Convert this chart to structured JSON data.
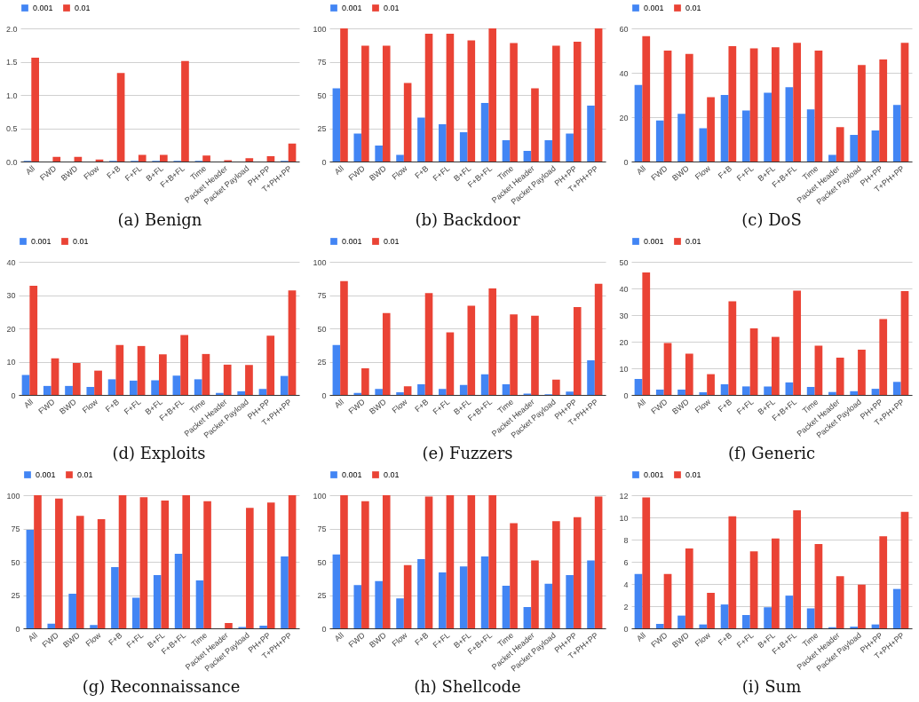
{
  "chart_data": [
    {
      "type": "bar",
      "title": "(a) Benign",
      "categories": [
        "All",
        "FWD",
        "BWD",
        "Flow",
        "F+B",
        "F+FL",
        "B+FL",
        "F+B+FL",
        "Time",
        "Packet Header",
        "Packet Payload",
        "PH+PP",
        "T+PH+PP"
      ],
      "series": [
        {
          "name": "0.001",
          "color": "#4285f4",
          "values": [
            0.01,
            0,
            0,
            0,
            0.01,
            0.01,
            0.01,
            0.01,
            0.01,
            0,
            0,
            0,
            0.01
          ]
        },
        {
          "name": "0.01",
          "color": "#ea4335",
          "values": [
            1.56,
            0.07,
            0.07,
            0.03,
            1.33,
            0.1,
            0.1,
            1.51,
            0.09,
            0.02,
            0.05,
            0.08,
            0.27
          ]
        }
      ],
      "ylim": [
        0,
        2
      ],
      "yticks": [
        {
          "value": 0,
          "label": "0.0"
        },
        {
          "value": 0.5,
          "label": "0.5"
        },
        {
          "value": 1,
          "label": "1.0"
        },
        {
          "value": 1.5,
          "label": "1.5"
        },
        {
          "value": 2,
          "label": "2.0"
        }
      ],
      "grid": "y",
      "legend": "top"
    },
    {
      "type": "bar",
      "title": "(b) Backdoor",
      "categories": [
        "All",
        "FWD",
        "BWD",
        "Flow",
        "F+B",
        "F+FL",
        "B+FL",
        "F+B+FL",
        "Time",
        "Packet Header",
        "Packet Payload",
        "PH+PP",
        "T+PH+PP"
      ],
      "series": [
        {
          "name": "0.001",
          "color": "#4285f4",
          "values": [
            55,
            21,
            12,
            5,
            33,
            28,
            22,
            44,
            16,
            8,
            16,
            21,
            42
          ]
        },
        {
          "name": "0.01",
          "color": "#ea4335",
          "values": [
            100,
            87,
            87,
            59,
            96,
            96,
            91,
            100,
            89,
            55,
            87,
            90,
            100
          ]
        }
      ],
      "ylim": [
        0,
        100
      ],
      "yticks": [
        0,
        25,
        50,
        75,
        100
      ],
      "grid": "y",
      "legend": "top"
    },
    {
      "type": "bar",
      "title": "(c) DoS",
      "categories": [
        "All",
        "FWD",
        "BWD",
        "Flow",
        "F+B",
        "F+FL",
        "B+FL",
        "F+B+FL",
        "Time",
        "Packet Header",
        "Packet Payload",
        "PH+PP",
        "T+PH+PP"
      ],
      "series": [
        {
          "name": "0.001",
          "color": "#4285f4",
          "values": [
            34.5,
            18.5,
            21.5,
            15,
            30,
            23,
            31,
            33.5,
            23.5,
            3,
            12,
            14,
            25.5
          ]
        },
        {
          "name": "0.01",
          "color": "#ea4335",
          "values": [
            56.5,
            50,
            48.5,
            29,
            52,
            51,
            51.5,
            53.5,
            50,
            15.5,
            43.5,
            46,
            53.5
          ]
        }
      ],
      "ylim": [
        0,
        60
      ],
      "yticks": [
        0,
        20,
        40,
        60
      ],
      "grid": "y",
      "legend": "top"
    },
    {
      "type": "bar",
      "title": "(d) Exploits",
      "categories": [
        "All",
        "FWD",
        "BWD",
        "Flow",
        "F+B",
        "F+FL",
        "B+FL",
        "F+B+FL",
        "Time",
        "Packet Header",
        "Packet Payload",
        "PH+PP",
        "T+PH+PP"
      ],
      "series": [
        {
          "name": "0.001",
          "color": "#4285f4",
          "values": [
            6,
            2.7,
            2.7,
            2.4,
            4.7,
            4.3,
            4.4,
            5.8,
            4.7,
            0.6,
            1.1,
            1.8,
            5.7
          ]
        },
        {
          "name": "0.01",
          "color": "#ea4335",
          "values": [
            32.8,
            11,
            9.6,
            7.3,
            15,
            14.7,
            12.2,
            18,
            12.3,
            9.1,
            9,
            17.8,
            31.4
          ]
        }
      ],
      "ylim": [
        0,
        40
      ],
      "yticks": [
        0,
        10,
        20,
        30,
        40
      ],
      "grid": "y",
      "legend": "top"
    },
    {
      "type": "bar",
      "title": "(e) Fuzzers",
      "categories": [
        "All",
        "FWD",
        "BWD",
        "Flow",
        "F+B",
        "F+FL",
        "B+FL",
        "F+B+FL",
        "Time",
        "Packet Header",
        "Packet Payload",
        "PH+PP",
        "T+PH+PP"
      ],
      "series": [
        {
          "name": "0.001",
          "color": "#4285f4",
          "values": [
            37.5,
            1.5,
            4.5,
            2,
            8,
            4.5,
            7.5,
            15.5,
            8,
            1,
            0.5,
            2.5,
            26
          ]
        },
        {
          "name": "0.01",
          "color": "#ea4335",
          "values": [
            85.5,
            20,
            61.5,
            6.5,
            76.5,
            47,
            67,
            80,
            60.5,
            59.5,
            11.5,
            66,
            83.5
          ]
        }
      ],
      "ylim": [
        0,
        100
      ],
      "yticks": [
        0,
        25,
        50,
        75,
        100
      ],
      "grid": "y",
      "legend": "top"
    },
    {
      "type": "bar",
      "title": "(f) Generic",
      "categories": [
        "All",
        "FWD",
        "BWD",
        "Flow",
        "F+B",
        "F+FL",
        "B+FL",
        "F+B+FL",
        "Time",
        "Packet Header",
        "Packet Payload",
        "PH+PP",
        "T+PH+PP"
      ],
      "series": [
        {
          "name": "0.001",
          "color": "#4285f4",
          "values": [
            6,
            2,
            2,
            1,
            4,
            3.2,
            3.2,
            4.7,
            3,
            1.1,
            1.4,
            2.3,
            4.9
          ]
        },
        {
          "name": "0.01",
          "color": "#ea4335",
          "values": [
            46,
            19.5,
            15.5,
            7.8,
            35.2,
            25,
            21.8,
            39.2,
            18.5,
            14,
            17,
            28.5,
            39
          ]
        }
      ],
      "ylim": [
        0,
        50
      ],
      "yticks": [
        0,
        10,
        20,
        30,
        40,
        50
      ],
      "grid": "y",
      "legend": "top"
    },
    {
      "type": "bar",
      "title": "(g) Reconnaissance",
      "categories": [
        "All",
        "FWD",
        "BWD",
        "Flow",
        "F+B",
        "F+FL",
        "B+FL",
        "F+B+FL",
        "Time",
        "Packet Header",
        "Packet Payload",
        "PH+PP",
        "T+PH+PP"
      ],
      "series": [
        {
          "name": "0.001",
          "color": "#4285f4",
          "values": [
            74,
            3.5,
            26,
            2.5,
            46,
            23,
            40,
            56,
            36,
            0,
            1,
            2,
            54
          ]
        },
        {
          "name": "0.01",
          "color": "#ea4335",
          "values": [
            100,
            97.5,
            84.5,
            82,
            100,
            98.5,
            96,
            100,
            95.5,
            4,
            90.5,
            94.5,
            100
          ]
        }
      ],
      "ylim": [
        0,
        100
      ],
      "yticks": [
        0,
        25,
        50,
        75,
        100
      ],
      "grid": "y",
      "legend": "top"
    },
    {
      "type": "bar",
      "title": "(h) Shellcode",
      "categories": [
        "All",
        "FWD",
        "BWD",
        "Flow",
        "F+B",
        "F+FL",
        "B+FL",
        "F+B+FL",
        "Time",
        "Packet Header",
        "Packet Payload",
        "PH+PP",
        "T+PH+PP"
      ],
      "series": [
        {
          "name": "0.001",
          "color": "#4285f4",
          "values": [
            55.5,
            32.5,
            35.5,
            22.5,
            52,
            42,
            46.5,
            54,
            32,
            16,
            33.5,
            40,
            51
          ]
        },
        {
          "name": "0.01",
          "color": "#ea4335",
          "values": [
            100,
            95.5,
            100,
            47.5,
            99,
            100,
            100,
            100,
            79,
            51,
            80.5,
            83.5,
            99
          ]
        }
      ],
      "ylim": [
        0,
        100
      ],
      "yticks": [
        0,
        25,
        50,
        75,
        100
      ],
      "grid": "y",
      "legend": "top"
    },
    {
      "type": "bar",
      "title": "(i) Sum",
      "categories": [
        "All",
        "FWD",
        "BWD",
        "Flow",
        "F+B",
        "F+FL",
        "B+FL",
        "F+B+FL",
        "Time",
        "Packet Header",
        "Packet Payload",
        "PH+PP",
        "T+PH+PP"
      ],
      "series": [
        {
          "name": "0.001",
          "color": "#4285f4",
          "values": [
            4.9,
            0.4,
            1.15,
            0.35,
            2.15,
            1.2,
            1.9,
            2.95,
            1.8,
            0.1,
            0.15,
            0.35,
            3.55
          ]
        },
        {
          "name": "0.01",
          "color": "#ea4335",
          "values": [
            11.8,
            4.9,
            7.2,
            3.2,
            10.1,
            6.95,
            8.1,
            10.65,
            7.6,
            4.7,
            3.95,
            8.3,
            10.5
          ]
        }
      ],
      "ylim": [
        0,
        12
      ],
      "yticks": [
        0,
        2,
        4,
        6,
        8,
        10,
        12
      ],
      "grid": "y",
      "legend": "top"
    }
  ]
}
